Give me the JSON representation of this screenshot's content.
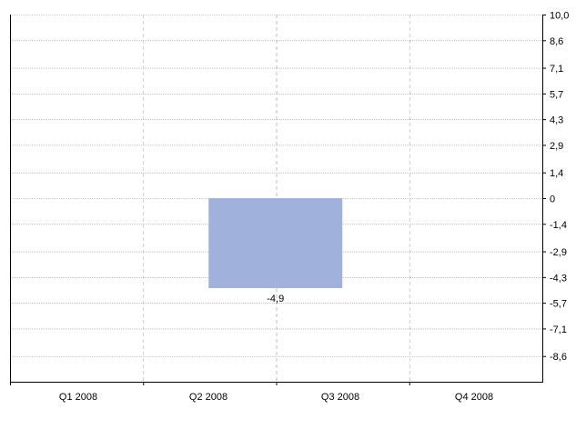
{
  "chart_data": {
    "type": "bar",
    "categories": [
      "Q1 2008",
      "Q2 2008",
      "Q3 2008",
      "Q4 2008"
    ],
    "series": [
      {
        "values": [
          null,
          -4.9,
          null,
          null
        ]
      }
    ],
    "data_labels": [
      "",
      "-4,9",
      "",
      ""
    ],
    "y_ticks": [
      "10,0",
      "8,6",
      "7,1",
      "5,7",
      "4,3",
      "2,9",
      "1,4",
      "0",
      "-1,4",
      "-2,9",
      "-4,3",
      "-5,7",
      "-7,1",
      "-8,6"
    ],
    "y_tick_values": [
      10.0,
      8.6,
      7.1,
      5.7,
      4.3,
      2.9,
      1.4,
      0,
      -1.4,
      -2.9,
      -4.3,
      -5.7,
      -7.1,
      -8.6
    ],
    "ylim": [
      -10.0,
      10.0
    ],
    "y_axis_position": "right",
    "grid": true,
    "bar_color": "#a0b1db",
    "title": "",
    "xlabel": "",
    "ylabel": ""
  }
}
